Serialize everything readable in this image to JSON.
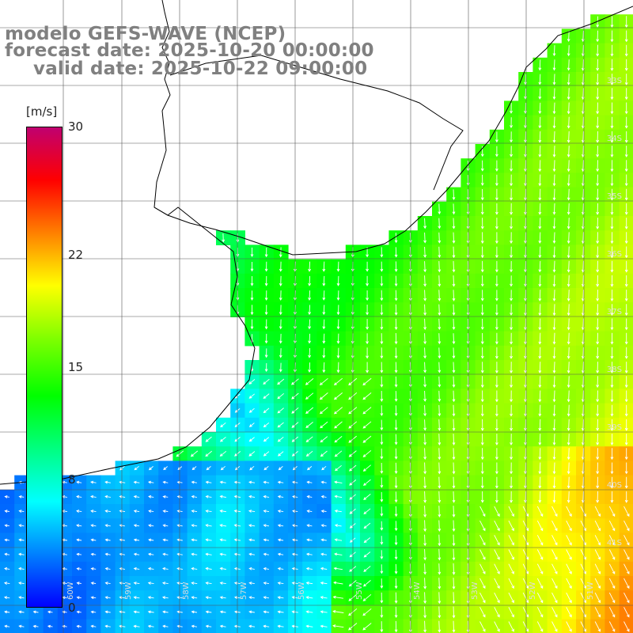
{
  "title": {
    "line1": "modelo GEFS-WAVE (NCEP)",
    "line2": "forecast date: 2025-10-20 00:00:00",
    "line3": "valid date: 2025-10-22 09:00:00"
  },
  "colorbar": {
    "unit": "[m/s]",
    "min": 0,
    "max": 30,
    "ticks": [
      {
        "label": "30",
        "value": 30
      },
      {
        "label": "22",
        "value": 22
      },
      {
        "label": "15",
        "value": 15
      },
      {
        "label": "8",
        "value": 8
      },
      {
        "label": "0",
        "value": 0
      }
    ],
    "colors": [
      "#0000ff",
      "#0080ff",
      "#00ffff",
      "#00ff80",
      "#00ff00",
      "#80ff00",
      "#ffff00",
      "#ff8000",
      "#ff0000",
      "#c00070"
    ]
  },
  "map": {
    "grid_lat_labels": [
      "33S",
      "34S",
      "35S",
      "36S",
      "37S",
      "38S",
      "39S",
      "40S",
      "41S"
    ],
    "grid_lon_labels": [
      "60W",
      "59W",
      "58W",
      "57W",
      "56W",
      "55W",
      "54W",
      "53W",
      "52W",
      "51W"
    ],
    "land_color": "#ffffff",
    "coast_color": "#000000",
    "arrow_color": "#ffffff"
  }
}
